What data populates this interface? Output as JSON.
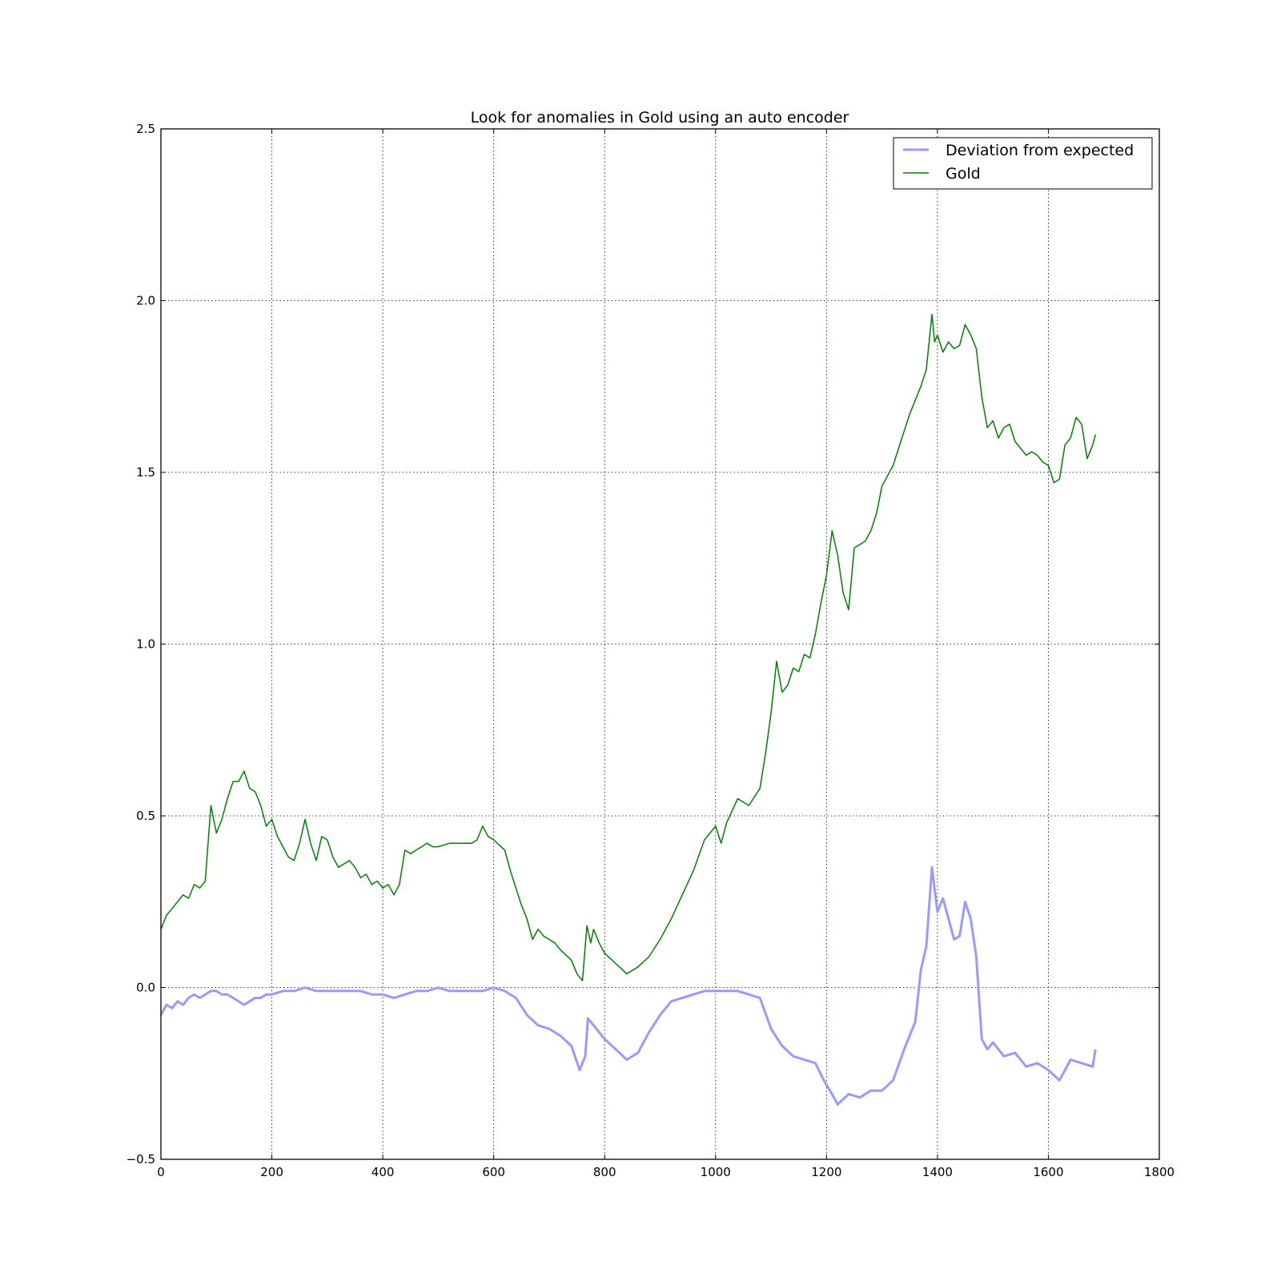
{
  "chart_data": {
    "type": "line",
    "title": "Look for anomalies in Gold using an auto encoder",
    "xlabel": "",
    "ylabel": "",
    "xlim": [
      0,
      1800
    ],
    "ylim": [
      -0.5,
      2.5
    ],
    "xticks": [
      0,
      200,
      400,
      600,
      800,
      1000,
      1200,
      1400,
      1600,
      1800
    ],
    "xtick_labels": [
      "0",
      "200",
      "400",
      "600",
      "800",
      "1000",
      "1200",
      "1400",
      "1600",
      "1800"
    ],
    "yticks": [
      -0.5,
      0.0,
      0.5,
      1.0,
      1.5,
      2.0,
      2.5
    ],
    "ytick_labels": [
      "−0.5",
      "0.0",
      "0.5",
      "1.0",
      "1.5",
      "2.0",
      "2.5"
    ],
    "grid": true,
    "legend_position": "top-right",
    "series": [
      {
        "name": "Deviation from expected",
        "color": "#9999ff",
        "points": [
          [
            0,
            -0.08
          ],
          [
            10,
            -0.05
          ],
          [
            20,
            -0.06
          ],
          [
            30,
            -0.04
          ],
          [
            40,
            -0.05
          ],
          [
            50,
            -0.03
          ],
          [
            60,
            -0.02
          ],
          [
            70,
            -0.03
          ],
          [
            80,
            -0.02
          ],
          [
            90,
            -0.01
          ],
          [
            100,
            -0.01
          ],
          [
            110,
            -0.02
          ],
          [
            120,
            -0.02
          ],
          [
            130,
            -0.03
          ],
          [
            140,
            -0.04
          ],
          [
            150,
            -0.05
          ],
          [
            160,
            -0.04
          ],
          [
            170,
            -0.03
          ],
          [
            180,
            -0.03
          ],
          [
            190,
            -0.02
          ],
          [
            200,
            -0.02
          ],
          [
            220,
            -0.01
          ],
          [
            240,
            -0.01
          ],
          [
            260,
            0.0
          ],
          [
            280,
            -0.01
          ],
          [
            300,
            -0.01
          ],
          [
            320,
            -0.01
          ],
          [
            340,
            -0.01
          ],
          [
            360,
            -0.01
          ],
          [
            380,
            -0.02
          ],
          [
            400,
            -0.02
          ],
          [
            420,
            -0.03
          ],
          [
            440,
            -0.02
          ],
          [
            460,
            -0.01
          ],
          [
            480,
            -0.01
          ],
          [
            500,
            0.0
          ],
          [
            520,
            -0.01
          ],
          [
            540,
            -0.01
          ],
          [
            560,
            -0.01
          ],
          [
            580,
            -0.01
          ],
          [
            600,
            0.0
          ],
          [
            620,
            -0.01
          ],
          [
            640,
            -0.03
          ],
          [
            660,
            -0.08
          ],
          [
            680,
            -0.11
          ],
          [
            700,
            -0.12
          ],
          [
            720,
            -0.14
          ],
          [
            740,
            -0.17
          ],
          [
            755,
            -0.24
          ],
          [
            765,
            -0.2
          ],
          [
            770,
            -0.09
          ],
          [
            780,
            -0.11
          ],
          [
            800,
            -0.15
          ],
          [
            820,
            -0.18
          ],
          [
            840,
            -0.21
          ],
          [
            860,
            -0.19
          ],
          [
            880,
            -0.13
          ],
          [
            900,
            -0.08
          ],
          [
            920,
            -0.04
          ],
          [
            940,
            -0.03
          ],
          [
            960,
            -0.02
          ],
          [
            980,
            -0.01
          ],
          [
            1000,
            -0.01
          ],
          [
            1020,
            -0.01
          ],
          [
            1040,
            -0.01
          ],
          [
            1060,
            -0.02
          ],
          [
            1080,
            -0.03
          ],
          [
            1100,
            -0.12
          ],
          [
            1120,
            -0.17
          ],
          [
            1140,
            -0.2
          ],
          [
            1160,
            -0.21
          ],
          [
            1180,
            -0.22
          ],
          [
            1195,
            -0.27
          ],
          [
            1210,
            -0.31
          ],
          [
            1220,
            -0.34
          ],
          [
            1240,
            -0.31
          ],
          [
            1260,
            -0.32
          ],
          [
            1280,
            -0.3
          ],
          [
            1300,
            -0.3
          ],
          [
            1320,
            -0.27
          ],
          [
            1340,
            -0.18
          ],
          [
            1360,
            -0.1
          ],
          [
            1370,
            0.05
          ],
          [
            1380,
            0.12
          ],
          [
            1390,
            0.35
          ],
          [
            1400,
            0.22
          ],
          [
            1410,
            0.26
          ],
          [
            1420,
            0.2
          ],
          [
            1430,
            0.14
          ],
          [
            1440,
            0.15
          ],
          [
            1450,
            0.25
          ],
          [
            1460,
            0.2
          ],
          [
            1470,
            0.09
          ],
          [
            1480,
            -0.15
          ],
          [
            1490,
            -0.18
          ],
          [
            1500,
            -0.16
          ],
          [
            1520,
            -0.2
          ],
          [
            1540,
            -0.19
          ],
          [
            1560,
            -0.23
          ],
          [
            1580,
            -0.22
          ],
          [
            1600,
            -0.24
          ],
          [
            1620,
            -0.27
          ],
          [
            1640,
            -0.21
          ],
          [
            1660,
            -0.22
          ],
          [
            1680,
            -0.23
          ],
          [
            1685,
            -0.18
          ]
        ]
      },
      {
        "name": "Gold",
        "color": "#008000",
        "points": [
          [
            0,
            0.17
          ],
          [
            10,
            0.21
          ],
          [
            20,
            0.23
          ],
          [
            30,
            0.25
          ],
          [
            40,
            0.27
          ],
          [
            50,
            0.26
          ],
          [
            60,
            0.3
          ],
          [
            70,
            0.29
          ],
          [
            80,
            0.31
          ],
          [
            90,
            0.53
          ],
          [
            100,
            0.45
          ],
          [
            110,
            0.49
          ],
          [
            120,
            0.55
          ],
          [
            130,
            0.6
          ],
          [
            140,
            0.6
          ],
          [
            150,
            0.63
          ],
          [
            160,
            0.58
          ],
          [
            170,
            0.57
          ],
          [
            180,
            0.53
          ],
          [
            190,
            0.47
          ],
          [
            200,
            0.49
          ],
          [
            210,
            0.44
          ],
          [
            220,
            0.41
          ],
          [
            230,
            0.38
          ],
          [
            240,
            0.37
          ],
          [
            250,
            0.42
          ],
          [
            260,
            0.49
          ],
          [
            270,
            0.42
          ],
          [
            280,
            0.37
          ],
          [
            290,
            0.44
          ],
          [
            300,
            0.43
          ],
          [
            310,
            0.38
          ],
          [
            320,
            0.35
          ],
          [
            330,
            0.36
          ],
          [
            340,
            0.37
          ],
          [
            350,
            0.35
          ],
          [
            360,
            0.32
          ],
          [
            370,
            0.33
          ],
          [
            380,
            0.3
          ],
          [
            390,
            0.31
          ],
          [
            400,
            0.29
          ],
          [
            410,
            0.3
          ],
          [
            420,
            0.27
          ],
          [
            430,
            0.3
          ],
          [
            440,
            0.4
          ],
          [
            450,
            0.39
          ],
          [
            460,
            0.4
          ],
          [
            470,
            0.41
          ],
          [
            480,
            0.42
          ],
          [
            490,
            0.41
          ],
          [
            500,
            0.41
          ],
          [
            520,
            0.42
          ],
          [
            540,
            0.42
          ],
          [
            560,
            0.42
          ],
          [
            570,
            0.43
          ],
          [
            580,
            0.47
          ],
          [
            590,
            0.44
          ],
          [
            600,
            0.43
          ],
          [
            620,
            0.4
          ],
          [
            630,
            0.34
          ],
          [
            640,
            0.29
          ],
          [
            650,
            0.24
          ],
          [
            660,
            0.2
          ],
          [
            670,
            0.14
          ],
          [
            680,
            0.17
          ],
          [
            690,
            0.15
          ],
          [
            700,
            0.14
          ],
          [
            710,
            0.13
          ],
          [
            720,
            0.11
          ],
          [
            740,
            0.08
          ],
          [
            750,
            0.04
          ],
          [
            760,
            0.02
          ],
          [
            768,
            0.18
          ],
          [
            775,
            0.13
          ],
          [
            780,
            0.17
          ],
          [
            790,
            0.13
          ],
          [
            800,
            0.1
          ],
          [
            820,
            0.07
          ],
          [
            840,
            0.04
          ],
          [
            850,
            0.05
          ],
          [
            860,
            0.06
          ],
          [
            880,
            0.09
          ],
          [
            900,
            0.14
          ],
          [
            920,
            0.2
          ],
          [
            940,
            0.27
          ],
          [
            960,
            0.34
          ],
          [
            980,
            0.43
          ],
          [
            1000,
            0.47
          ],
          [
            1010,
            0.42
          ],
          [
            1020,
            0.48
          ],
          [
            1040,
            0.55
          ],
          [
            1060,
            0.53
          ],
          [
            1080,
            0.58
          ],
          [
            1090,
            0.68
          ],
          [
            1100,
            0.8
          ],
          [
            1110,
            0.95
          ],
          [
            1120,
            0.86
          ],
          [
            1130,
            0.88
          ],
          [
            1140,
            0.93
          ],
          [
            1150,
            0.92
          ],
          [
            1160,
            0.97
          ],
          [
            1170,
            0.96
          ],
          [
            1180,
            1.03
          ],
          [
            1190,
            1.12
          ],
          [
            1200,
            1.2
          ],
          [
            1210,
            1.33
          ],
          [
            1220,
            1.26
          ],
          [
            1230,
            1.15
          ],
          [
            1240,
            1.1
          ],
          [
            1250,
            1.28
          ],
          [
            1260,
            1.29
          ],
          [
            1270,
            1.3
          ],
          [
            1280,
            1.33
          ],
          [
            1290,
            1.38
          ],
          [
            1300,
            1.46
          ],
          [
            1310,
            1.49
          ],
          [
            1320,
            1.52
          ],
          [
            1330,
            1.57
          ],
          [
            1340,
            1.62
          ],
          [
            1350,
            1.67
          ],
          [
            1360,
            1.71
          ],
          [
            1370,
            1.75
          ],
          [
            1380,
            1.8
          ],
          [
            1390,
            1.96
          ],
          [
            1395,
            1.88
          ],
          [
            1400,
            1.9
          ],
          [
            1410,
            1.85
          ],
          [
            1420,
            1.88
          ],
          [
            1430,
            1.86
          ],
          [
            1440,
            1.87
          ],
          [
            1450,
            1.93
          ],
          [
            1460,
            1.9
          ],
          [
            1470,
            1.86
          ],
          [
            1480,
            1.72
          ],
          [
            1490,
            1.63
          ],
          [
            1500,
            1.65
          ],
          [
            1510,
            1.6
          ],
          [
            1520,
            1.63
          ],
          [
            1530,
            1.64
          ],
          [
            1540,
            1.59
          ],
          [
            1550,
            1.57
          ],
          [
            1560,
            1.55
          ],
          [
            1570,
            1.56
          ],
          [
            1580,
            1.55
          ],
          [
            1590,
            1.53
          ],
          [
            1600,
            1.52
          ],
          [
            1610,
            1.47
          ],
          [
            1620,
            1.48
          ],
          [
            1630,
            1.58
          ],
          [
            1640,
            1.6
          ],
          [
            1650,
            1.66
          ],
          [
            1660,
            1.64
          ],
          [
            1670,
            1.54
          ],
          [
            1680,
            1.58
          ],
          [
            1685,
            1.61
          ]
        ]
      }
    ]
  }
}
